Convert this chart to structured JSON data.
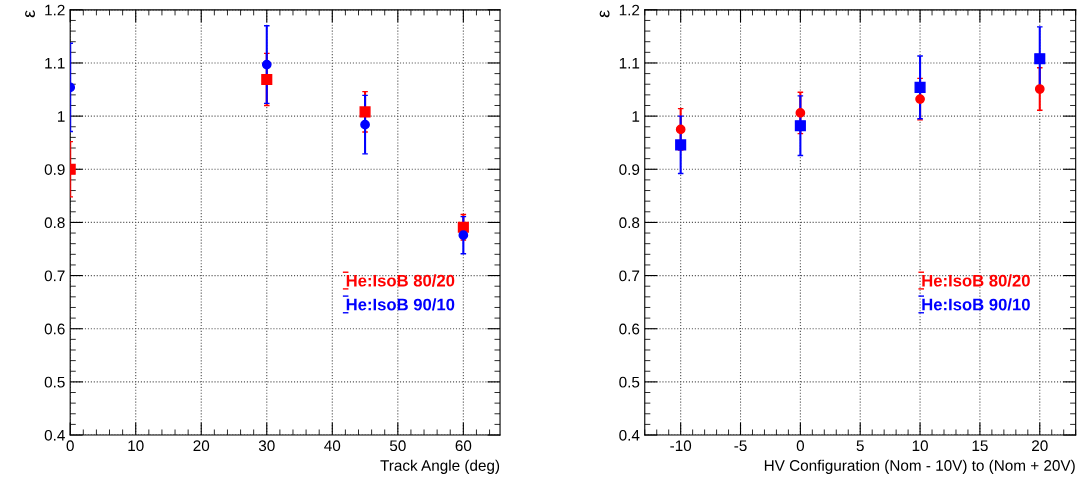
{
  "chart_data": [
    {
      "type": "scatter",
      "xlabel": "Track Angle (deg)",
      "ylabel": "ε",
      "xlim": [
        0,
        65.6
      ],
      "xticks": [
        0,
        10,
        20,
        30,
        40,
        50,
        60
      ],
      "ylim": [
        0.4,
        1.2
      ],
      "yticks": [
        0.4,
        0.5,
        0.6,
        0.7,
        0.8,
        0.9,
        1,
        1.1,
        1.2
      ],
      "grid": true,
      "legend": "bottom right",
      "series": [
        {
          "name": "He:IsoB 80/20",
          "color": "#ff0000",
          "marker": "square",
          "x": [
            0,
            30,
            45,
            60
          ],
          "values": [
            0.9,
            1.069,
            1.008,
            0.791
          ],
          "errors": [
            0.052,
            0.049,
            0.038,
            0.024
          ]
        },
        {
          "name": "He:IsoB 90/10",
          "color": "#0000ff",
          "marker": "circle",
          "x": [
            0,
            30,
            45,
            60
          ],
          "values": [
            1.054,
            1.097,
            0.984,
            0.776
          ],
          "errors": [
            0.083,
            0.073,
            0.055,
            0.035
          ]
        }
      ]
    },
    {
      "type": "scatter",
      "xlabel": "HV Configuration (Nom - 10V) to (Nom + 20V)",
      "ylabel": "ε",
      "xlim": [
        -13,
        23
      ],
      "xticks": [
        -10,
        -5,
        0,
        5,
        10,
        15,
        20
      ],
      "ylim": [
        0.4,
        1.2
      ],
      "yticks": [
        0.4,
        0.5,
        0.6,
        0.7,
        0.8,
        0.9,
        1,
        1.1,
        1.2
      ],
      "grid": true,
      "legend": "bottom right",
      "series": [
        {
          "name": "He:IsoB 80/20",
          "color": "#ff0000",
          "marker": "circle",
          "x": [
            -10,
            0,
            10,
            20
          ],
          "values": [
            0.975,
            1.006,
            1.032,
            1.051
          ],
          "errors": [
            0.039,
            0.039,
            0.039,
            0.04
          ]
        },
        {
          "name": "He:IsoB 90/10",
          "color": "#0000ff",
          "marker": "square",
          "x": [
            -10,
            0,
            10,
            20
          ],
          "values": [
            0.946,
            0.982,
            1.054,
            1.108
          ],
          "errors": [
            0.054,
            0.056,
            0.059,
            0.06
          ]
        }
      ]
    }
  ]
}
